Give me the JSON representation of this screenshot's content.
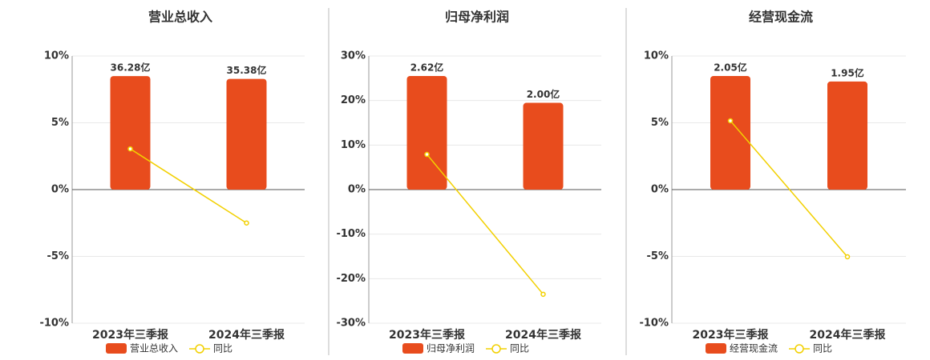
{
  "chart_data": [
    {
      "type": "bar",
      "title": "营业总收入",
      "categories": [
        "2023年三季报",
        "2024年三季报"
      ],
      "series": [
        {
          "name": "营业总收入",
          "type": "bar",
          "axis": "y2",
          "color": "#e84c1d",
          "values": [
            36.28,
            35.38
          ],
          "value_labels": [
            "36.28亿",
            "35.38亿"
          ]
        },
        {
          "name": "同比",
          "type": "line",
          "color": "#f2d000",
          "values": [
            3.05,
            -2.5
          ]
        }
      ],
      "ylim": [
        -10,
        10
      ],
      "yticks": [
        {
          "value": -10,
          "label": "-10%"
        },
        {
          "value": -5,
          "label": "-5%"
        },
        {
          "value": 0,
          "label": "0%"
        },
        {
          "value": 5,
          "label": "5%"
        },
        {
          "value": 10,
          "label": "10%"
        }
      ],
      "y2lim": [
        -42.7,
        42.7
      ],
      "grid": true
    },
    {
      "type": "bar",
      "title": "归母净利润",
      "categories": [
        "2023年三季报",
        "2024年三季报"
      ],
      "series": [
        {
          "name": "归母净利润",
          "type": "bar",
          "axis": "y2",
          "color": "#e84c1d",
          "values": [
            2.62,
            2.0
          ],
          "value_labels": [
            "2.62亿",
            "2.00亿"
          ]
        },
        {
          "name": "同比",
          "type": "line",
          "color": "#f2d000",
          "values": [
            7.9,
            -23.5
          ]
        }
      ],
      "ylim": [
        -30,
        30
      ],
      "yticks": [
        {
          "value": -30,
          "label": "-30%"
        },
        {
          "value": -20,
          "label": "-20%"
        },
        {
          "value": -10,
          "label": "-10%"
        },
        {
          "value": 0,
          "label": "0%"
        },
        {
          "value": 10,
          "label": "10%"
        },
        {
          "value": 20,
          "label": "20%"
        },
        {
          "value": 30,
          "label": "30%"
        }
      ],
      "y2lim": [
        -3.08,
        3.08
      ],
      "grid": true
    },
    {
      "type": "bar",
      "title": "经营现金流",
      "categories": [
        "2023年三季报",
        "2024年三季报"
      ],
      "series": [
        {
          "name": "经营现金流",
          "type": "bar",
          "axis": "y2",
          "color": "#e84c1d",
          "values": [
            2.05,
            1.95
          ],
          "value_labels": [
            "2.05亿",
            "1.95亿"
          ]
        },
        {
          "name": "同比",
          "type": "line",
          "color": "#f2d000",
          "values": [
            5.15,
            -5.03
          ]
        }
      ],
      "ylim": [
        -10,
        10
      ],
      "yticks": [
        {
          "value": -10,
          "label": "-10%"
        },
        {
          "value": -5,
          "label": "-5%"
        },
        {
          "value": 0,
          "label": "0%"
        },
        {
          "value": 5,
          "label": "5%"
        },
        {
          "value": 10,
          "label": "10%"
        }
      ],
      "y2lim": [
        -2.41,
        2.41
      ],
      "grid": true
    }
  ]
}
